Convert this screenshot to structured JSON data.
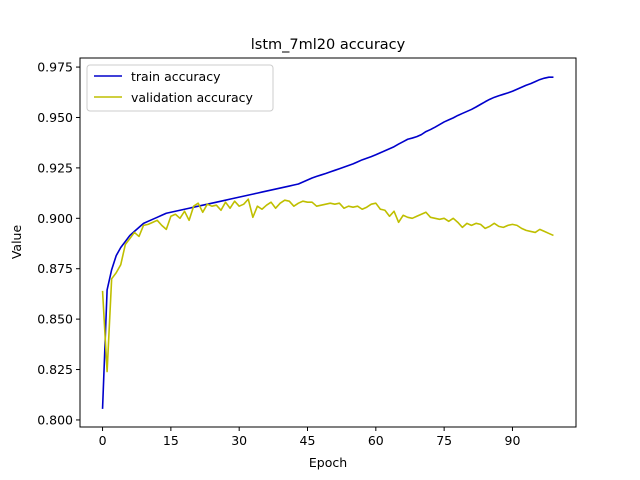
{
  "chart_data": {
    "type": "line",
    "title": "lstm_7ml20 accuracy",
    "xlabel": "Epoch",
    "ylabel": "Value",
    "xlim": [
      -4.95,
      103.95
    ],
    "ylim": [
      0.7965,
      0.9795
    ],
    "xticks": [
      0,
      15,
      30,
      45,
      60,
      75,
      90
    ],
    "yticks": [
      0.8,
      0.825,
      0.85,
      0.875,
      0.9,
      0.925,
      0.95,
      0.975
    ],
    "ytick_labels": [
      "0.800",
      "0.825",
      "0.850",
      "0.875",
      "0.900",
      "0.925",
      "0.950",
      "0.975"
    ],
    "legend_position": "upper-left",
    "grid": false,
    "series": [
      {
        "name": "train accuracy",
        "color": "#0000cc",
        "values": [
          0.8055,
          0.8645,
          0.8745,
          0.8815,
          0.8855,
          0.8885,
          0.8915,
          0.8935,
          0.8955,
          0.8975,
          0.8985,
          0.8995,
          0.9005,
          0.9015,
          0.9025,
          0.903,
          0.9035,
          0.904,
          0.9045,
          0.905,
          0.9055,
          0.906,
          0.9065,
          0.907,
          0.9075,
          0.908,
          0.9085,
          0.909,
          0.9095,
          0.91,
          0.9105,
          0.911,
          0.9115,
          0.912,
          0.9125,
          0.913,
          0.9135,
          0.914,
          0.9145,
          0.915,
          0.9155,
          0.916,
          0.9165,
          0.917,
          0.918,
          0.919,
          0.92,
          0.9208,
          0.9215,
          0.9222,
          0.923,
          0.9238,
          0.9246,
          0.9254,
          0.9262,
          0.927,
          0.928,
          0.929,
          0.9298,
          0.9306,
          0.9315,
          0.9325,
          0.9335,
          0.9345,
          0.9355,
          0.9368,
          0.938,
          0.9392,
          0.9398,
          0.9405,
          0.9415,
          0.943,
          0.944,
          0.9452,
          0.9465,
          0.9478,
          0.9488,
          0.9498,
          0.951,
          0.952,
          0.953,
          0.954,
          0.9552,
          0.9565,
          0.9578,
          0.959,
          0.96,
          0.9608,
          0.9615,
          0.9622,
          0.963,
          0.964,
          0.965,
          0.966,
          0.9668,
          0.9678,
          0.9688,
          0.9695,
          0.97,
          0.97
        ]
      },
      {
        "name": "validation accuracy",
        "color": "#bfbf00",
        "values": [
          0.864,
          0.824,
          0.87,
          0.873,
          0.877,
          0.887,
          0.89,
          0.893,
          0.891,
          0.8965,
          0.897,
          0.898,
          0.899,
          0.8965,
          0.8945,
          0.901,
          0.902,
          0.9,
          0.9035,
          0.899,
          0.906,
          0.9075,
          0.903,
          0.907,
          0.906,
          0.9065,
          0.904,
          0.908,
          0.905,
          0.9085,
          0.906,
          0.907,
          0.9095,
          0.9005,
          0.906,
          0.9045,
          0.9065,
          0.908,
          0.905,
          0.9075,
          0.909,
          0.9085,
          0.906,
          0.9075,
          0.9085,
          0.908,
          0.908,
          0.906,
          0.9065,
          0.907,
          0.9075,
          0.907,
          0.9075,
          0.905,
          0.906,
          0.9055,
          0.906,
          0.9045,
          0.9055,
          0.907,
          0.9075,
          0.9045,
          0.904,
          0.901,
          0.9035,
          0.898,
          0.9015,
          0.9005,
          0.9,
          0.901,
          0.902,
          0.903,
          0.9005,
          0.9,
          0.8995,
          0.9,
          0.8985,
          0.9,
          0.898,
          0.8955,
          0.8975,
          0.8965,
          0.8975,
          0.897,
          0.895,
          0.896,
          0.8975,
          0.896,
          0.8955,
          0.8965,
          0.897,
          0.8965,
          0.895,
          0.894,
          0.8935,
          0.893,
          0.8945,
          0.8935,
          0.8925,
          0.8915
        ]
      }
    ]
  }
}
